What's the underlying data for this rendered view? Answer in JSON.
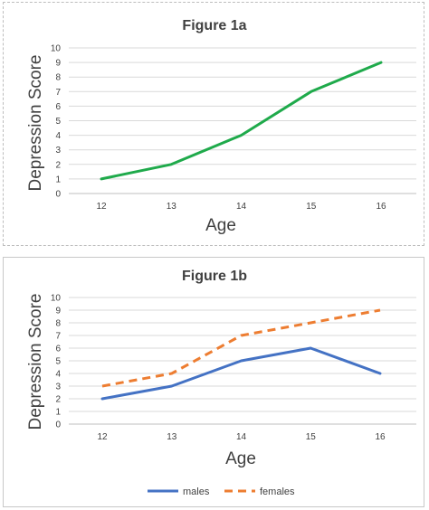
{
  "chart_data": [
    {
      "type": "line",
      "title": "Figure 1a",
      "xlabel": "Age",
      "ylabel": "Depression Score",
      "categories": [
        "12",
        "13",
        "14",
        "15",
        "16"
      ],
      "ylim": [
        0,
        10
      ],
      "yticks": [
        "0",
        "1",
        "2",
        "3",
        "4",
        "5",
        "6",
        "7",
        "8",
        "9",
        "10"
      ],
      "grid": true,
      "legend": "none",
      "series": [
        {
          "values": [
            1,
            2,
            4,
            7,
            9
          ],
          "color": "#1faa4b",
          "dash": "solid"
        }
      ]
    },
    {
      "type": "line",
      "title": "Figure 1b",
      "xlabel": "Age",
      "ylabel": "Depression Score",
      "categories": [
        "12",
        "13",
        "14",
        "15",
        "16"
      ],
      "ylim": [
        0,
        10
      ],
      "yticks": [
        "0",
        "1",
        "2",
        "3",
        "4",
        "5",
        "6",
        "7",
        "8",
        "9",
        "10"
      ],
      "grid": true,
      "legend": "bottom",
      "series": [
        {
          "name": "males",
          "values": [
            2,
            3,
            5,
            6,
            4
          ],
          "color": "#4472c4",
          "dash": "solid"
        },
        {
          "name": "females",
          "values": [
            3,
            4,
            7,
            8,
            9
          ],
          "color": "#ed7d31",
          "dash": "dashed"
        }
      ]
    }
  ]
}
